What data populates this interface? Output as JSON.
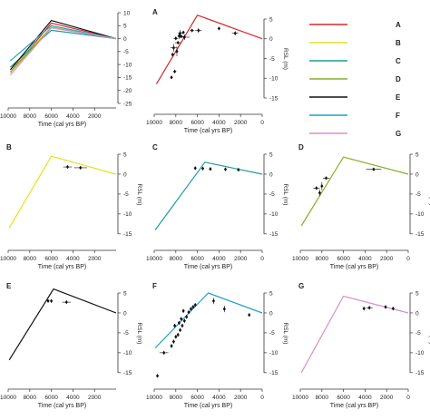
{
  "chart_data": [
    {
      "id": "overview",
      "type": "line",
      "panel_label": "",
      "xlabel": "Time (cal yrs BP)",
      "ylabel": "",
      "xlim": [
        10000,
        0
      ],
      "ylim": [
        -25,
        10
      ],
      "xticks": [
        10000,
        8000,
        6000,
        4000,
        2000
      ],
      "xtick_labels": [
        "10000",
        "8000",
        "6000",
        "4000",
        "2000"
      ],
      "yticks": [
        10,
        5,
        0,
        -5,
        -10,
        -15,
        -20,
        -25
      ],
      "ytick_labels": [
        "10",
        "5",
        "0",
        "-5",
        "-10",
        "-15",
        "-20",
        "-25"
      ],
      "series": [
        {
          "color": "#d62728",
          "x": [
            9800,
            6000,
            0
          ],
          "y": [
            -13,
            6,
            0
          ]
        },
        {
          "color": "#e8e01c",
          "x": [
            9800,
            6000,
            0
          ],
          "y": [
            -12,
            4.5,
            0
          ]
        },
        {
          "color": "#1f9c9c",
          "x": [
            9800,
            6000,
            0
          ],
          "y": [
            -11,
            3.2,
            0
          ]
        },
        {
          "color": "#86b22a",
          "x": [
            9800,
            6000,
            0
          ],
          "y": [
            -13,
            4.3,
            0
          ]
        },
        {
          "color": "#111111",
          "x": [
            9800,
            6000,
            0
          ],
          "y": [
            -12,
            7,
            0
          ]
        },
        {
          "color": "#1fa2c9",
          "x": [
            9800,
            6000,
            0
          ],
          "y": [
            -8.5,
            5,
            0
          ]
        },
        {
          "color": "#d98fc2",
          "x": [
            9800,
            6000,
            0
          ],
          "y": [
            -14,
            4.2,
            0
          ]
        }
      ],
      "points": []
    },
    {
      "id": "A",
      "type": "line",
      "panel_label": "A",
      "xlabel": "Time (cal yrs BP)",
      "ylabel": "RSL (m)",
      "xlim": [
        10000,
        0
      ],
      "ylim": [
        -18,
        5
      ],
      "xticks": [
        10000,
        8000,
        6000,
        4000,
        2000,
        0
      ],
      "xtick_labels": [
        "10000",
        "8000",
        "6000",
        "4000",
        "2000",
        "0"
      ],
      "yticks": [
        5,
        0,
        -5,
        -10,
        -15
      ],
      "ytick_labels": [
        "5",
        "0",
        "-5",
        "-10",
        "-15"
      ],
      "series": [
        {
          "color": "#d62728",
          "x": [
            9800,
            6000,
            0
          ],
          "y": [
            -11.5,
            6,
            0
          ]
        }
      ],
      "points": [
        {
          "x": 8200,
          "y": -2.3,
          "xerr": 300,
          "yerr": 1
        },
        {
          "x": 8000,
          "y": 0.1,
          "xerr": 200,
          "yerr": 0
        },
        {
          "x": 7900,
          "y": -3.2,
          "xerr": 0,
          "yerr": 1.2
        },
        {
          "x": 7800,
          "y": -1,
          "xerr": 300,
          "yerr": 0
        },
        {
          "x": 7700,
          "y": 0.7,
          "xerr": 0,
          "yerr": 0.8
        },
        {
          "x": 7600,
          "y": 1.4,
          "xerr": 200,
          "yerr": 0.8
        },
        {
          "x": 7500,
          "y": 0.6,
          "xerr": 300,
          "yerr": 0
        },
        {
          "x": 7300,
          "y": 1.6,
          "xerr": 0,
          "yerr": 0
        },
        {
          "x": 7200,
          "y": 0.4,
          "xerr": 500,
          "yerr": 0.7
        },
        {
          "x": 6500,
          "y": 2.1,
          "xerr": 200,
          "yerr": 0
        },
        {
          "x": 5900,
          "y": 2.1,
          "xerr": 300,
          "yerr": 0.6
        },
        {
          "x": 4000,
          "y": 2.6,
          "xerr": 0,
          "yerr": 0
        },
        {
          "x": 2500,
          "y": 1.4,
          "xerr": 300,
          "yerr": 0.5
        },
        {
          "x": 8300,
          "y": -4,
          "xerr": 0,
          "yerr": 0
        },
        {
          "x": 8100,
          "y": -8.3,
          "xerr": 150,
          "yerr": 0
        },
        {
          "x": 8400,
          "y": -9.8,
          "xerr": 0,
          "yerr": 0
        }
      ]
    },
    {
      "id": "B",
      "type": "line",
      "panel_label": "B",
      "xlabel": "Time (cal yrs BP)",
      "ylabel": "RSL (m)",
      "xlim": [
        10000,
        0
      ],
      "ylim": [
        -18,
        5
      ],
      "xticks": [
        10000,
        8000,
        6000,
        4000,
        2000
      ],
      "xtick_labels": [
        "10000",
        "8000",
        "6000",
        "4000",
        "2000"
      ],
      "yticks": [
        5,
        0,
        -5,
        -10,
        -15
      ],
      "ytick_labels": [
        "5",
        "0",
        "-5",
        "-10",
        "-15"
      ],
      "series": [
        {
          "color": "#e8e01c",
          "x": [
            9900,
            6000,
            0
          ],
          "y": [
            -13.5,
            4.5,
            0
          ]
        }
      ],
      "points": [
        {
          "x": 4500,
          "y": 1.8,
          "xerr": 400,
          "yerr": 0
        },
        {
          "x": 3300,
          "y": 1.6,
          "xerr": 600,
          "yerr": 0
        }
      ]
    },
    {
      "id": "C",
      "type": "line",
      "panel_label": "C",
      "xlabel": "Time (cal yrs BP)",
      "ylabel": "RSL (m)",
      "xlim": [
        10000,
        0
      ],
      "ylim": [
        -18,
        5
      ],
      "xticks": [
        10000,
        8000,
        6000,
        4000,
        2000,
        0
      ],
      "xtick_labels": [
        "10000",
        "8000",
        "6000",
        "4000",
        "2000",
        "0"
      ],
      "yticks": [
        5,
        0,
        -5,
        -10,
        -15
      ],
      "ytick_labels": [
        "5",
        "0",
        "-5",
        "-10",
        "-15"
      ],
      "series": [
        {
          "color": "#1f9c9c",
          "x": [
            9900,
            5300,
            0
          ],
          "y": [
            -14,
            3,
            0
          ]
        }
      ],
      "points": [
        {
          "x": 6200,
          "y": 1.5,
          "xerr": 0,
          "yerr": 0
        },
        {
          "x": 5500,
          "y": 1.4,
          "xerr": 0,
          "yerr": 0
        },
        {
          "x": 4800,
          "y": 1.3,
          "xerr": 0,
          "yerr": 0
        },
        {
          "x": 3400,
          "y": 1.2,
          "xerr": 0,
          "yerr": 0
        },
        {
          "x": 2200,
          "y": 1.1,
          "xerr": 0,
          "yerr": 0
        }
      ]
    },
    {
      "id": "D",
      "type": "line",
      "panel_label": "D",
      "xlabel": "Time (cal yrs BP)",
      "ylabel": "RSL (m)",
      "xlim": [
        10000,
        0
      ],
      "ylim": [
        -18,
        5
      ],
      "xticks": [
        10000,
        8000,
        6000,
        4000,
        2000,
        0
      ],
      "xtick_labels": [
        "10000",
        "8000",
        "6000",
        "4000",
        "2000",
        "0"
      ],
      "yticks": [
        5,
        0,
        -5,
        -10,
        -15
      ],
      "ytick_labels": [
        "5",
        "0",
        "-5",
        "-10",
        "-15"
      ],
      "series": [
        {
          "color": "#86b22a",
          "x": [
            9900,
            6000,
            0
          ],
          "y": [
            -13,
            4.3,
            0
          ]
        }
      ],
      "points": [
        {
          "x": 8500,
          "y": -3.5,
          "xerr": 300,
          "yerr": 0
        },
        {
          "x": 8200,
          "y": -4.7,
          "xerr": 0,
          "yerr": 0.8
        },
        {
          "x": 8000,
          "y": -3,
          "xerr": 0,
          "yerr": 1
        },
        {
          "x": 7600,
          "y": -1,
          "xerr": 300,
          "yerr": 0
        },
        {
          "x": 3200,
          "y": 1.2,
          "xerr": 700,
          "yerr": 0
        }
      ]
    },
    {
      "id": "E",
      "type": "line",
      "panel_label": "E",
      "xlabel": "Time (cal yrs BP)",
      "ylabel": "RSL (m)",
      "xlim": [
        10000,
        0
      ],
      "ylim": [
        -18,
        5
      ],
      "xticks": [
        10000,
        8000,
        6000,
        4000,
        2000
      ],
      "xtick_labels": [
        "10000",
        "8000",
        "6000",
        "4000",
        "2000"
      ],
      "yticks": [
        5,
        0,
        -5,
        -10,
        -15
      ],
      "ytick_labels": [
        "5",
        "0",
        "-5",
        "-10",
        "-15"
      ],
      "series": [
        {
          "color": "#111111",
          "x": [
            9900,
            5800,
            0
          ],
          "y": [
            -11.8,
            6,
            0
          ]
        }
      ],
      "points": [
        {
          "x": 6300,
          "y": 3,
          "xerr": 0,
          "yerr": 0
        },
        {
          "x": 6000,
          "y": 3,
          "xerr": 0,
          "yerr": 0
        },
        {
          "x": 4600,
          "y": 2.7,
          "xerr": 400,
          "yerr": 0
        }
      ]
    },
    {
      "id": "F",
      "type": "line",
      "panel_label": "F",
      "xlabel": "Time (cal yrs BP)",
      "ylabel": "RSL (m)",
      "xlim": [
        10000,
        0
      ],
      "ylim": [
        -18,
        5
      ],
      "xticks": [
        10000,
        8000,
        6000,
        4000,
        2000,
        0
      ],
      "xtick_labels": [
        "10000",
        "8000",
        "6000",
        "4000",
        "2000",
        "0"
      ],
      "yticks": [
        5,
        0,
        -5,
        -10,
        -15
      ],
      "ytick_labels": [
        "5",
        "0",
        "-5",
        "-10",
        "-15"
      ],
      "series": [
        {
          "color": "#1fa2c9",
          "x": [
            9900,
            5000,
            0
          ],
          "y": [
            -8.8,
            5,
            0
          ]
        }
      ],
      "points": [
        {
          "x": 9700,
          "y": -15.8,
          "xerr": 0,
          "yerr": 0
        },
        {
          "x": 9100,
          "y": -10,
          "xerr": 400,
          "yerr": 0
        },
        {
          "x": 8400,
          "y": -8.3,
          "xerr": 0,
          "yerr": 0.5
        },
        {
          "x": 8200,
          "y": -7.2,
          "xerr": 0,
          "yerr": 0.5
        },
        {
          "x": 8000,
          "y": -6,
          "xerr": 0,
          "yerr": 0.5
        },
        {
          "x": 7800,
          "y": -5.5,
          "xerr": 0,
          "yerr": 0.5
        },
        {
          "x": 7600,
          "y": -4.3,
          "xerr": 0,
          "yerr": 0.5
        },
        {
          "x": 7400,
          "y": -3.2,
          "xerr": 0,
          "yerr": 0.5
        },
        {
          "x": 7200,
          "y": -2,
          "xerr": 0,
          "yerr": 0.5
        },
        {
          "x": 7000,
          "y": -1,
          "xerr": 0,
          "yerr": 0.5
        },
        {
          "x": 6800,
          "y": 0.2,
          "xerr": 0,
          "yerr": 0.5
        },
        {
          "x": 6600,
          "y": 1,
          "xerr": 0,
          "yerr": 0.5
        },
        {
          "x": 6400,
          "y": 1.5,
          "xerr": 0,
          "yerr": 0.5
        },
        {
          "x": 6200,
          "y": 2,
          "xerr": 0,
          "yerr": 0.5
        },
        {
          "x": 7700,
          "y": -2.5,
          "xerr": 0,
          "yerr": 0.5
        },
        {
          "x": 7500,
          "y": -1.5,
          "xerr": 0,
          "yerr": 0.5
        },
        {
          "x": 7300,
          "y": 0.5,
          "xerr": 0,
          "yerr": 0.5
        },
        {
          "x": 8100,
          "y": -3.2,
          "xerr": 0,
          "yerr": 0.5
        },
        {
          "x": 4500,
          "y": 3,
          "xerr": 0,
          "yerr": 0.8
        },
        {
          "x": 3500,
          "y": 1,
          "xerr": 0,
          "yerr": 0.8
        },
        {
          "x": 1200,
          "y": -0.5,
          "xerr": 0,
          "yerr": 0
        }
      ]
    },
    {
      "id": "G",
      "type": "line",
      "panel_label": "G",
      "xlabel": "Time (cal yrs BP)",
      "ylabel": "RSL (m)",
      "xlim": [
        10000,
        0
      ],
      "ylim": [
        -18,
        5
      ],
      "xticks": [
        10000,
        8000,
        6000,
        4000,
        2000,
        0
      ],
      "xtick_labels": [
        "10000",
        "8000",
        "6000",
        "4000",
        "2000",
        "0"
      ],
      "yticks": [
        5,
        0,
        -5,
        -10,
        -15
      ],
      "ytick_labels": [
        "5",
        "0",
        "-5",
        "-10",
        "-15"
      ],
      "series": [
        {
          "color": "#d98fc2",
          "x": [
            9900,
            6000,
            0
          ],
          "y": [
            -15,
            4.2,
            0
          ]
        }
      ],
      "points": [
        {
          "x": 4100,
          "y": 1.1,
          "xerr": 0,
          "yerr": 0
        },
        {
          "x": 3600,
          "y": 1.3,
          "xerr": 300,
          "yerr": 0
        },
        {
          "x": 2100,
          "y": 1.5,
          "xerr": 0,
          "yerr": 0
        },
        {
          "x": 1400,
          "y": 1.1,
          "xerr": 0,
          "yerr": 0
        }
      ]
    }
  ],
  "legend": {
    "position": "top-right",
    "items": [
      {
        "label": "A",
        "color": "#d62728"
      },
      {
        "label": "B",
        "color": "#e8e01c"
      },
      {
        "label": "C",
        "color": "#1f9c9c"
      },
      {
        "label": "D",
        "color": "#86b22a"
      },
      {
        "label": "E",
        "color": "#111111"
      },
      {
        "label": "F",
        "color": "#1fa2c9"
      },
      {
        "label": "G",
        "color": "#d98fc2"
      }
    ]
  }
}
